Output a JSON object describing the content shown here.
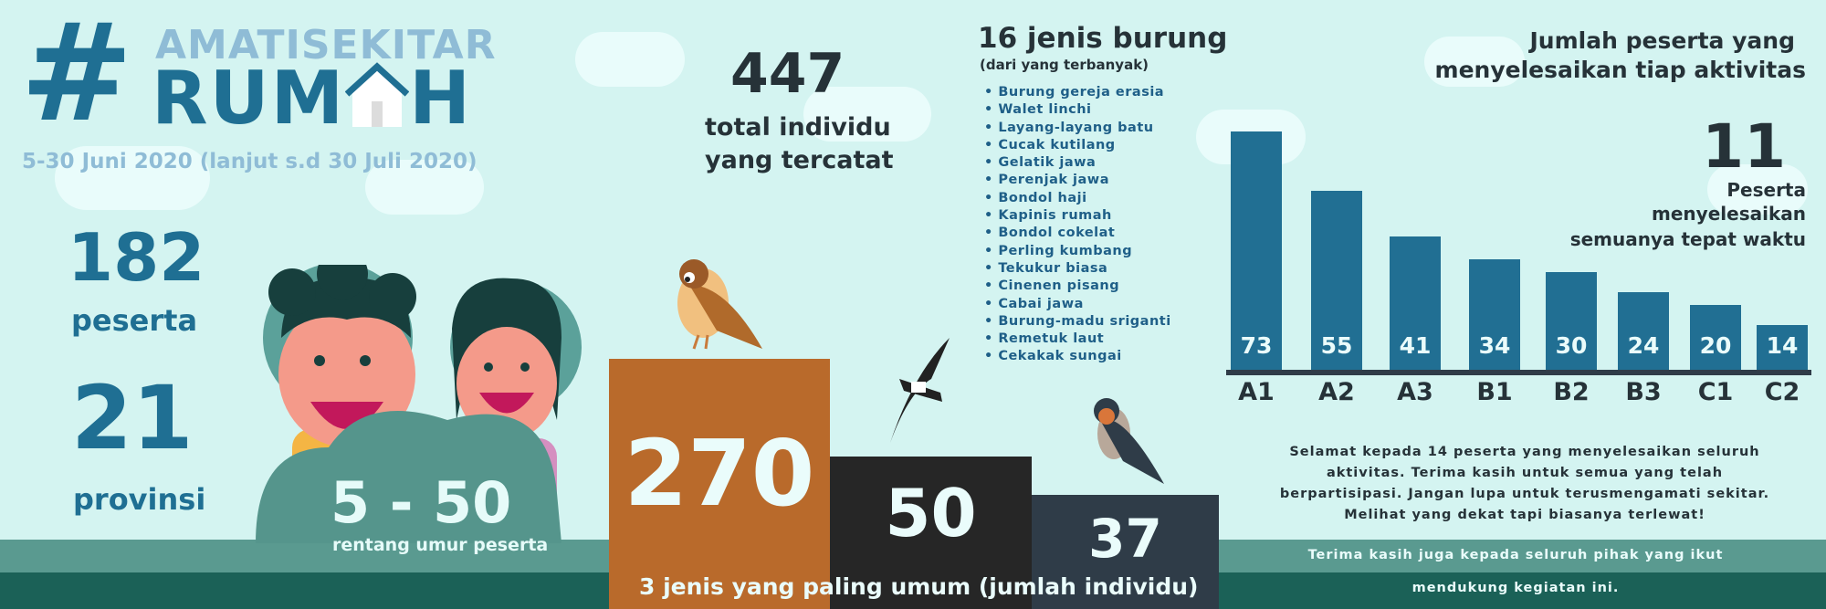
{
  "header": {
    "hashtag": "#",
    "title_top": "AMATISEKITAR",
    "title_bottom_left": "RUM",
    "title_bottom_right": "H",
    "dates": "5-30 Juni 2020 (lanjut s.d 30 Juli 2020)"
  },
  "stats": {
    "participants_value": "182",
    "participants_label": "peserta",
    "provinces_value": "21",
    "provinces_label": "provinsi",
    "age_range_value": "5 - 50",
    "age_range_label": "rentang umur peserta",
    "individuals_value": "447",
    "individuals_label_1": "total individu",
    "individuals_label_2": "yang tercatat"
  },
  "species": {
    "title": "16 jenis burung",
    "subtitle": "(dari yang terbanyak)",
    "items": [
      "Burung gereja erasia",
      "Walet linchi",
      "Layang-layang batu",
      "Cucak kutilang",
      "Gelatik jawa",
      "Perenjak jawa",
      "Bondol haji",
      "Kapinis rumah",
      "Bondol cokelat",
      "Perling kumbang",
      "Tekukur biasa",
      "Cinenen pisang",
      "Cabai jawa",
      "Burung-madu sriganti",
      "Remetuk laut",
      "Cekakak sungai"
    ]
  },
  "podium": {
    "values": [
      "270",
      "50",
      "37"
    ],
    "colors": [
      "#b96a2b",
      "#262626",
      "#2f3c48"
    ],
    "caption": "3 jenis yang paling umum (jumlah individu)"
  },
  "chart_data": {
    "type": "bar",
    "title": "Jumlah peserta yang menyelesaikan tiap aktivitas",
    "title_line_1": "Jumlah peserta yang",
    "title_line_2": "menyelesaikan tiap aktivitas",
    "categories": [
      "A1",
      "A2",
      "A3",
      "B1",
      "B2",
      "B3",
      "C1",
      "C2"
    ],
    "values": [
      73,
      55,
      41,
      34,
      30,
      24,
      20,
      14
    ],
    "value_labels": [
      "73",
      "55",
      "41",
      "34",
      "30",
      "24",
      "20",
      "14"
    ],
    "ylim": [
      0,
      73
    ],
    "grid": false,
    "bar_color": "#216f93"
  },
  "completion": {
    "value": "11",
    "line_1": "Peserta",
    "line_2": "menyelesaikan",
    "line_3": "semuanya tepat waktu"
  },
  "message": {
    "paragraph": "Selamat kepada 14 peserta yang menyelesaikan seluruh aktivitas. Terima kasih untuk semua yang telah berpartisipasi. Jangan lupa untuk terusmengamati sekitar. Melihat yang dekat tapi biasanya terlewat!",
    "thanks_1": "Terima kasih juga kepada seluruh pihak yang ikut",
    "thanks_2": "mendukung kegiatan ini."
  }
}
